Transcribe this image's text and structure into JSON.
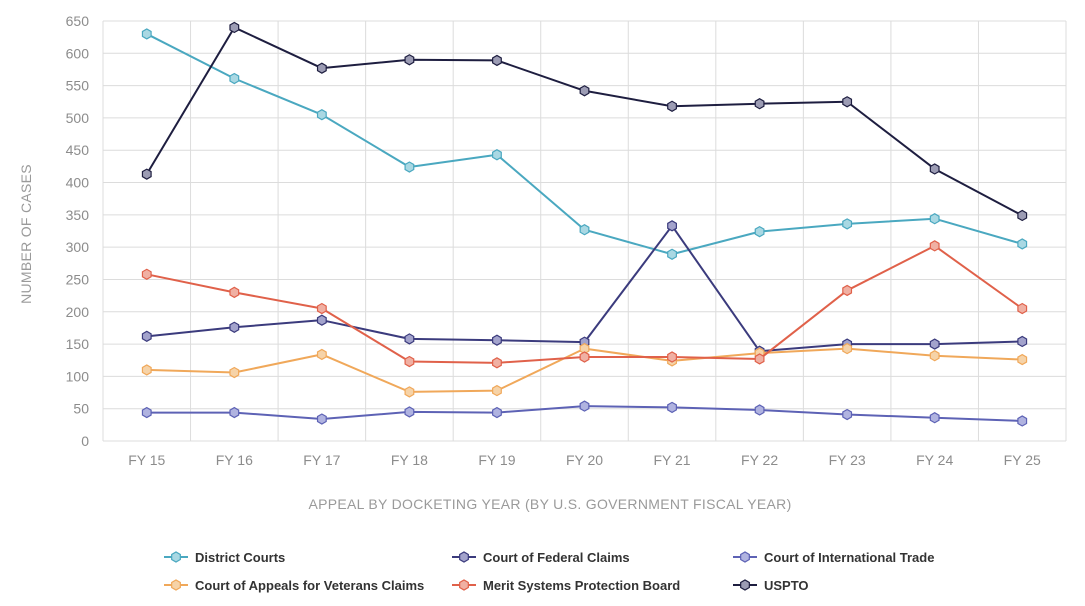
{
  "chart_data": {
    "type": "line",
    "title": "",
    "xlabel": "APPEAL BY DOCKETING YEAR (BY U.S. GOVERNMENT FISCAL YEAR)",
    "ylabel": "NUMBER OF CASES",
    "ylim": [
      0,
      650
    ],
    "yticks": [
      0,
      50,
      100,
      150,
      200,
      250,
      300,
      350,
      400,
      450,
      500,
      550,
      600,
      650
    ],
    "grid": true,
    "legend_position": "bottom",
    "categories": [
      "FY 15",
      "FY 16",
      "FY 17",
      "FY 18",
      "FY 19",
      "FY 20",
      "FY 21",
      "FY 22",
      "FY 23",
      "FY 24",
      "FY 25"
    ],
    "series": [
      {
        "name": "District Courts",
        "color": "#4aa8c0",
        "marker_fill": "#a9d8e3",
        "values": [
          630,
          561,
          505,
          424,
          443,
          327,
          289,
          324,
          336,
          344,
          305
        ]
      },
      {
        "name": "Court of Federal Claims",
        "color": "#3b3b7d",
        "marker_fill": "#a3a3cc",
        "values": [
          162,
          176,
          187,
          158,
          156,
          153,
          333,
          139,
          150,
          150,
          154
        ]
      },
      {
        "name": "Court of International Trade",
        "color": "#5d62b5",
        "marker_fill": "#b0b3e0",
        "values": [
          44,
          44,
          34,
          45,
          44,
          54,
          52,
          48,
          41,
          36,
          31
        ]
      },
      {
        "name": "Court of Appeals for Veterans Claims",
        "color": "#f0a85a",
        "marker_fill": "#f6d3a8",
        "values": [
          110,
          106,
          134,
          76,
          78,
          143,
          124,
          136,
          143,
          132,
          126
        ]
      },
      {
        "name": "Merit Systems Protection Board",
        "color": "#e0614a",
        "marker_fill": "#f0b0a3",
        "values": [
          258,
          230,
          205,
          123,
          121,
          130,
          130,
          127,
          233,
          302,
          205
        ]
      },
      {
        "name": "USPTO",
        "color": "#1e1e40",
        "marker_fill": "#9c9cb4",
        "values": [
          413,
          640,
          577,
          590,
          589,
          542,
          518,
          522,
          525,
          421,
          349
        ]
      }
    ]
  }
}
